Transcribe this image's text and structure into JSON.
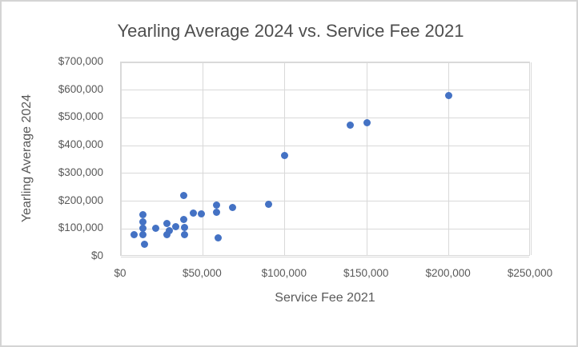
{
  "chart_data": {
    "type": "scatter",
    "title": "Yearling Average 2024 vs. Service Fee 2021",
    "xlabel": "Service Fee 2021",
    "ylabel": "Yearling Average 2024",
    "xlim": [
      0,
      250000
    ],
    "ylim": [
      0,
      700000
    ],
    "x_tick_interval": 50000,
    "y_tick_interval": 100000,
    "x_tick_labels": [
      "$0",
      "$50,000",
      "$100,000",
      "$150,000",
      "$200,000",
      "$250,000"
    ],
    "y_tick_labels": [
      "$0",
      "$100,000",
      "$200,000",
      "$300,000",
      "$400,000",
      "$500,000",
      "$600,000",
      "$700,000"
    ],
    "grid": true,
    "legend": "none",
    "marker_color": "#4472C4",
    "gridline_color": "#d9d9d9",
    "text_color": "#595959",
    "points": [
      {
        "x": 8000,
        "y": 78000
      },
      {
        "x": 13500,
        "y": 150000
      },
      {
        "x": 13500,
        "y": 125000
      },
      {
        "x": 13500,
        "y": 102000
      },
      {
        "x": 13500,
        "y": 79000
      },
      {
        "x": 14500,
        "y": 45000
      },
      {
        "x": 21000,
        "y": 103000
      },
      {
        "x": 28000,
        "y": 119000
      },
      {
        "x": 29500,
        "y": 95000
      },
      {
        "x": 28000,
        "y": 80000
      },
      {
        "x": 33500,
        "y": 109000
      },
      {
        "x": 38500,
        "y": 220000
      },
      {
        "x": 38500,
        "y": 133000
      },
      {
        "x": 39000,
        "y": 106000
      },
      {
        "x": 39000,
        "y": 78000
      },
      {
        "x": 44000,
        "y": 158000
      },
      {
        "x": 49000,
        "y": 154000
      },
      {
        "x": 58500,
        "y": 186000
      },
      {
        "x": 58500,
        "y": 160000
      },
      {
        "x": 59500,
        "y": 68000
      },
      {
        "x": 68000,
        "y": 176000
      },
      {
        "x": 90000,
        "y": 189000
      },
      {
        "x": 100000,
        "y": 364000
      },
      {
        "x": 140000,
        "y": 475000
      },
      {
        "x": 150000,
        "y": 482000
      },
      {
        "x": 200000,
        "y": 580000
      }
    ]
  }
}
